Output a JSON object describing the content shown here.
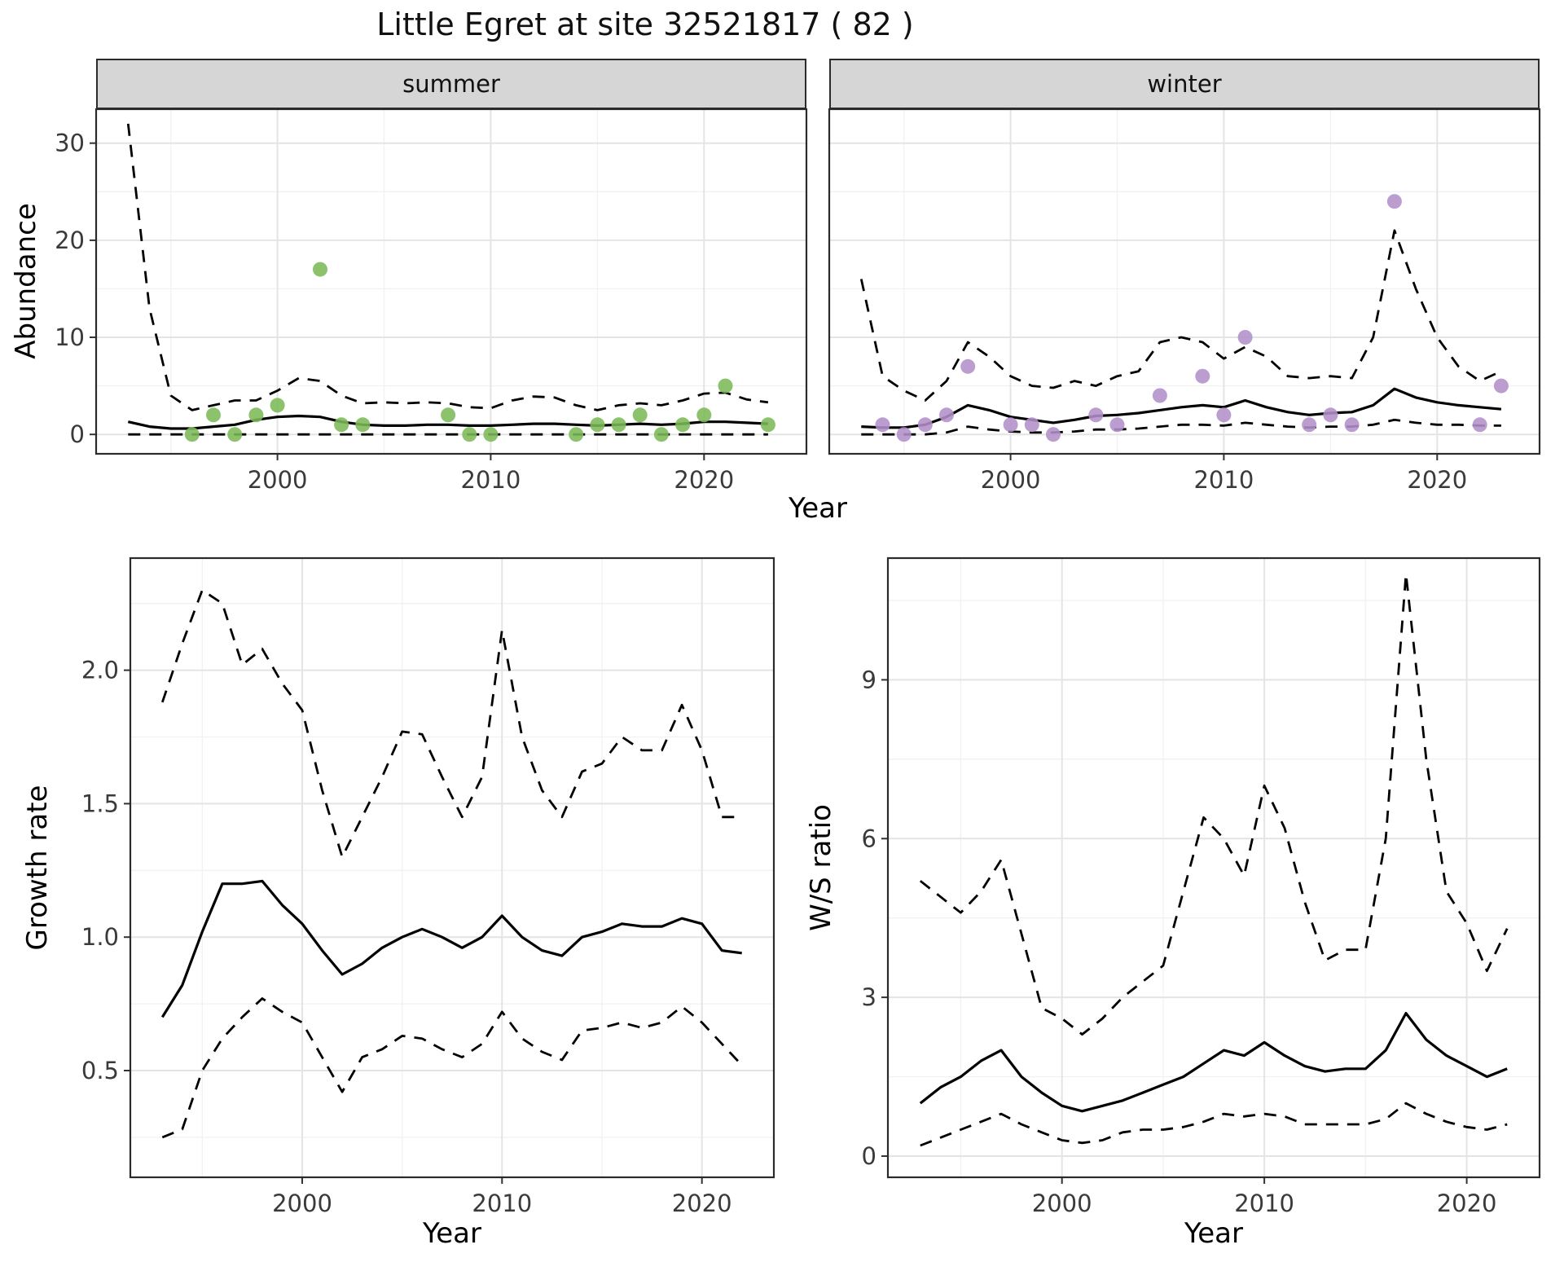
{
  "title": "Little Egret at site 32521817 ( 82 )",
  "chart_data": [
    {
      "id": "abundance",
      "type": "line+scatter",
      "ylabel": "Abundance",
      "xlabel": "Year",
      "xlim": [
        1991.5,
        2024.8
      ],
      "ylim": [
        -2,
        33.5
      ],
      "xticks": [
        2000,
        2010,
        2020
      ],
      "xtick_labels": [
        "2000",
        "2010",
        "2020"
      ],
      "yticks": [
        0,
        10,
        20,
        30
      ],
      "ytick_labels": [
        "0",
        "10",
        "20",
        "30"
      ],
      "xminor": [
        1995,
        2005,
        2015
      ],
      "yminor": [
        5,
        15,
        25
      ],
      "line_color": "#000000",
      "grid": true,
      "facets": [
        {
          "label": "summer",
          "point_color": "#7bb957",
          "points": {
            "x": [
              1996,
              1997,
              1998,
              1999,
              2000,
              2002,
              2003,
              2004,
              2008,
              2009,
              2010,
              2014,
              2015,
              2016,
              2017,
              2018,
              2019,
              2020,
              2021,
              2023
            ],
            "y": [
              0,
              2,
              0,
              2,
              3,
              17,
              1,
              1,
              2,
              0,
              0,
              0,
              1,
              1,
              2,
              0,
              1,
              2,
              5,
              1
            ]
          },
          "fit": {
            "x": [
              1993,
              1994,
              1995,
              1996,
              1997,
              1998,
              1999,
              2000,
              2001,
              2002,
              2003,
              2004,
              2005,
              2006,
              2007,
              2008,
              2009,
              2010,
              2011,
              2012,
              2013,
              2014,
              2015,
              2016,
              2017,
              2018,
              2019,
              2020,
              2021,
              2022,
              2023
            ],
            "y": [
              1.3,
              0.8,
              0.6,
              0.6,
              0.8,
              1.0,
              1.5,
              1.8,
              1.9,
              1.8,
              1.3,
              1.0,
              0.9,
              0.9,
              1.0,
              1.0,
              0.9,
              0.9,
              1.0,
              1.1,
              1.1,
              1.0,
              0.9,
              1.0,
              1.1,
              1.0,
              1.1,
              1.3,
              1.3,
              1.2,
              1.1
            ]
          },
          "upper": {
            "x": [
              1993,
              1994,
              1995,
              1996,
              1997,
              1998,
              1999,
              2000,
              2001,
              2002,
              2003,
              2004,
              2005,
              2006,
              2007,
              2008,
              2009,
              2010,
              2011,
              2012,
              2013,
              2014,
              2015,
              2016,
              2017,
              2018,
              2019,
              2020,
              2021,
              2022,
              2023
            ],
            "y": [
              32,
              13,
              4,
              2.5,
              3,
              3.5,
              3.5,
              4.5,
              5.8,
              5.5,
              4,
              3.2,
              3.3,
              3.2,
              3.3,
              3.2,
              2.8,
              2.7,
              3.5,
              3.9,
              3.8,
              3.0,
              2.5,
              3.0,
              3.2,
              3.0,
              3.5,
              4.2,
              4.3,
              3.6,
              3.3
            ]
          },
          "lower": {
            "x": [
              1993,
              1994,
              1995,
              1996,
              1997,
              1998,
              1999,
              2000,
              2001,
              2002,
              2003,
              2004,
              2005,
              2006,
              2007,
              2008,
              2009,
              2010,
              2011,
              2012,
              2013,
              2014,
              2015,
              2016,
              2017,
              2018,
              2019,
              2020,
              2021,
              2022,
              2023
            ],
            "y": [
              0,
              0,
              0,
              0,
              0,
              0,
              0,
              0,
              0,
              0,
              0,
              0,
              0,
              0,
              0,
              0,
              0,
              0,
              0,
              0,
              0,
              0,
              0,
              0,
              0,
              0,
              0,
              0,
              0,
              0,
              0
            ]
          }
        },
        {
          "label": "winter",
          "point_color": "#b28fc9",
          "points": {
            "x": [
              1994,
              1995,
              1996,
              1997,
              1998,
              2000,
              2001,
              2002,
              2004,
              2005,
              2007,
              2009,
              2010,
              2011,
              2014,
              2015,
              2016,
              2018,
              2022,
              2023
            ],
            "y": [
              1,
              0,
              1,
              2,
              7,
              1,
              1,
              0,
              2,
              1,
              4,
              6,
              2,
              10,
              1,
              2,
              1,
              24,
              1,
              5
            ]
          },
          "fit": {
            "x": [
              1993,
              1994,
              1995,
              1996,
              1997,
              1998,
              1999,
              2000,
              2001,
              2002,
              2003,
              2004,
              2005,
              2006,
              2007,
              2008,
              2009,
              2010,
              2011,
              2012,
              2013,
              2014,
              2015,
              2016,
              2017,
              2018,
              2019,
              2020,
              2021,
              2022,
              2023
            ],
            "y": [
              0.8,
              0.7,
              0.7,
              1.0,
              1.8,
              3.0,
              2.5,
              1.8,
              1.5,
              1.2,
              1.5,
              1.9,
              2.0,
              2.2,
              2.5,
              2.8,
              3.0,
              2.8,
              3.5,
              2.8,
              2.3,
              2.0,
              2.2,
              2.3,
              3.0,
              4.7,
              3.8,
              3.3,
              3.0,
              2.8,
              2.6
            ]
          },
          "upper": {
            "x": [
              1993,
              1994,
              1995,
              1996,
              1997,
              1998,
              1999,
              2000,
              2001,
              2002,
              2003,
              2004,
              2005,
              2006,
              2007,
              2008,
              2009,
              2010,
              2011,
              2012,
              2013,
              2014,
              2015,
              2016,
              2017,
              2018,
              2019,
              2020,
              2021,
              2022,
              2023
            ],
            "y": [
              16,
              6,
              4.5,
              3.5,
              5.5,
              9.5,
              8,
              6,
              5,
              4.8,
              5.5,
              5,
              6,
              6.5,
              9.5,
              10,
              9.5,
              7.8,
              9,
              8,
              6,
              5.8,
              6,
              5.8,
              10,
              21,
              15,
              10,
              7,
              5.5,
              6.5
            ]
          },
          "lower": {
            "x": [
              1993,
              1994,
              1995,
              1996,
              1997,
              1998,
              1999,
              2000,
              2001,
              2002,
              2003,
              2004,
              2005,
              2006,
              2007,
              2008,
              2009,
              2010,
              2011,
              2012,
              2013,
              2014,
              2015,
              2016,
              2017,
              2018,
              2019,
              2020,
              2021,
              2022,
              2023
            ],
            "y": [
              0,
              0,
              0,
              0,
              0.2,
              0.8,
              0.5,
              0.3,
              0.2,
              0.2,
              0.3,
              0.5,
              0.5,
              0.6,
              0.8,
              1.0,
              1.0,
              0.9,
              1.2,
              1.0,
              0.8,
              0.7,
              0.8,
              0.8,
              1.0,
              1.5,
              1.2,
              1.0,
              1.0,
              0.9,
              0.9
            ]
          }
        }
      ]
    },
    {
      "id": "growth_rate",
      "type": "line",
      "ylabel": "Growth rate",
      "xlabel": "Year",
      "xlim": [
        1991.4,
        2023.6
      ],
      "ylim": [
        0.1,
        2.42
      ],
      "xticks": [
        2000,
        2010,
        2020
      ],
      "xtick_labels": [
        "2000",
        "2010",
        "2020"
      ],
      "yticks": [
        0.5,
        1.0,
        1.5,
        2.0
      ],
      "ytick_labels": [
        "0.5",
        "1.0",
        "1.5",
        "2.0"
      ],
      "xminor": [
        1995,
        2005,
        2015
      ],
      "yminor": [
        0.25,
        0.75,
        1.25,
        1.75,
        2.25
      ],
      "line_color": "#000000",
      "grid": true,
      "fit": {
        "x": [
          1993,
          1994,
          1995,
          1996,
          1997,
          1998,
          1999,
          2000,
          2001,
          2002,
          2003,
          2004,
          2005,
          2006,
          2007,
          2008,
          2009,
          2010,
          2011,
          2012,
          2013,
          2014,
          2015,
          2016,
          2017,
          2018,
          2019,
          2020,
          2021,
          2022
        ],
        "y": [
          0.7,
          0.82,
          1.02,
          1.2,
          1.2,
          1.21,
          1.12,
          1.05,
          0.95,
          0.86,
          0.9,
          0.96,
          1.0,
          1.03,
          1.0,
          0.96,
          1.0,
          1.08,
          1.0,
          0.95,
          0.93,
          1.0,
          1.02,
          1.05,
          1.04,
          1.04,
          1.07,
          1.05,
          0.95,
          0.94
        ]
      },
      "upper": {
        "x": [
          1993,
          1994,
          1995,
          1996,
          1997,
          1998,
          1999,
          2000,
          2001,
          2002,
          2003,
          2004,
          2005,
          2006,
          2007,
          2008,
          2009,
          2010,
          2011,
          2012,
          2013,
          2014,
          2015,
          2016,
          2017,
          2018,
          2019,
          2020,
          2021,
          2022
        ],
        "y": [
          1.88,
          2.1,
          2.3,
          2.25,
          2.02,
          2.08,
          1.95,
          1.85,
          1.55,
          1.3,
          1.45,
          1.6,
          1.77,
          1.76,
          1.6,
          1.45,
          1.6,
          2.15,
          1.75,
          1.55,
          1.45,
          1.62,
          1.65,
          1.75,
          1.7,
          1.7,
          1.87,
          1.7,
          1.45,
          1.45
        ]
      },
      "lower": {
        "x": [
          1993,
          1994,
          1995,
          1996,
          1997,
          1998,
          1999,
          2000,
          2001,
          2002,
          2003,
          2004,
          2005,
          2006,
          2007,
          2008,
          2009,
          2010,
          2011,
          2012,
          2013,
          2014,
          2015,
          2016,
          2017,
          2018,
          2019,
          2020,
          2021,
          2022
        ],
        "y": [
          0.25,
          0.28,
          0.5,
          0.62,
          0.7,
          0.77,
          0.72,
          0.68,
          0.55,
          0.42,
          0.55,
          0.58,
          0.63,
          0.62,
          0.58,
          0.55,
          0.6,
          0.72,
          0.62,
          0.57,
          0.54,
          0.65,
          0.66,
          0.68,
          0.66,
          0.68,
          0.74,
          0.68,
          0.6,
          0.52
        ]
      }
    },
    {
      "id": "ws_ratio",
      "type": "line",
      "ylabel": "W/S ratio",
      "xlabel": "Year",
      "xlim": [
        1991.4,
        2023.6
      ],
      "ylim": [
        -0.4,
        11.3
      ],
      "xticks": [
        2000,
        2010,
        2020
      ],
      "xtick_labels": [
        "2000",
        "2010",
        "2020"
      ],
      "yticks": [
        0,
        3,
        6,
        9
      ],
      "ytick_labels": [
        "0",
        "3",
        "6",
        "9"
      ],
      "xminor": [
        1995,
        2005,
        2015
      ],
      "yminor": [
        1.5,
        4.5,
        7.5,
        10.5
      ],
      "line_color": "#000000",
      "grid": true,
      "fit": {
        "x": [
          1993,
          1994,
          1995,
          1996,
          1997,
          1998,
          1999,
          2000,
          2001,
          2002,
          2003,
          2004,
          2005,
          2006,
          2007,
          2008,
          2009,
          2010,
          2011,
          2012,
          2013,
          2014,
          2015,
          2016,
          2017,
          2018,
          2019,
          2020,
          2021,
          2022
        ],
        "y": [
          1.0,
          1.3,
          1.5,
          1.8,
          2.0,
          1.5,
          1.2,
          0.95,
          0.85,
          0.95,
          1.05,
          1.2,
          1.35,
          1.5,
          1.75,
          2.0,
          1.9,
          2.15,
          1.9,
          1.7,
          1.6,
          1.65,
          1.65,
          2.0,
          2.7,
          2.2,
          1.9,
          1.7,
          1.5,
          1.65
        ]
      },
      "upper": {
        "x": [
          1993,
          1994,
          1995,
          1996,
          1997,
          1998,
          1999,
          2000,
          2001,
          2002,
          2003,
          2004,
          2005,
          2006,
          2007,
          2008,
          2009,
          2010,
          2011,
          2012,
          2013,
          2014,
          2015,
          2016,
          2017,
          2018,
          2019,
          2020,
          2021,
          2022
        ],
        "y": [
          5.2,
          4.9,
          4.6,
          5.0,
          5.6,
          4.2,
          2.8,
          2.6,
          2.3,
          2.6,
          3.0,
          3.3,
          3.6,
          5.0,
          6.4,
          6.0,
          5.3,
          7.0,
          6.2,
          4.8,
          3.7,
          3.9,
          3.9,
          6.0,
          11.0,
          7.5,
          5.0,
          4.4,
          3.5,
          4.3
        ]
      },
      "lower": {
        "x": [
          1993,
          1994,
          1995,
          1996,
          1997,
          1998,
          1999,
          2000,
          2001,
          2002,
          2003,
          2004,
          2005,
          2006,
          2007,
          2008,
          2009,
          2010,
          2011,
          2012,
          2013,
          2014,
          2015,
          2016,
          2017,
          2018,
          2019,
          2020,
          2021,
          2022
        ],
        "y": [
          0.2,
          0.35,
          0.5,
          0.65,
          0.8,
          0.6,
          0.45,
          0.3,
          0.25,
          0.3,
          0.45,
          0.5,
          0.5,
          0.55,
          0.65,
          0.8,
          0.75,
          0.8,
          0.75,
          0.6,
          0.6,
          0.6,
          0.6,
          0.7,
          1.0,
          0.8,
          0.65,
          0.55,
          0.5,
          0.6
        ]
      }
    }
  ]
}
